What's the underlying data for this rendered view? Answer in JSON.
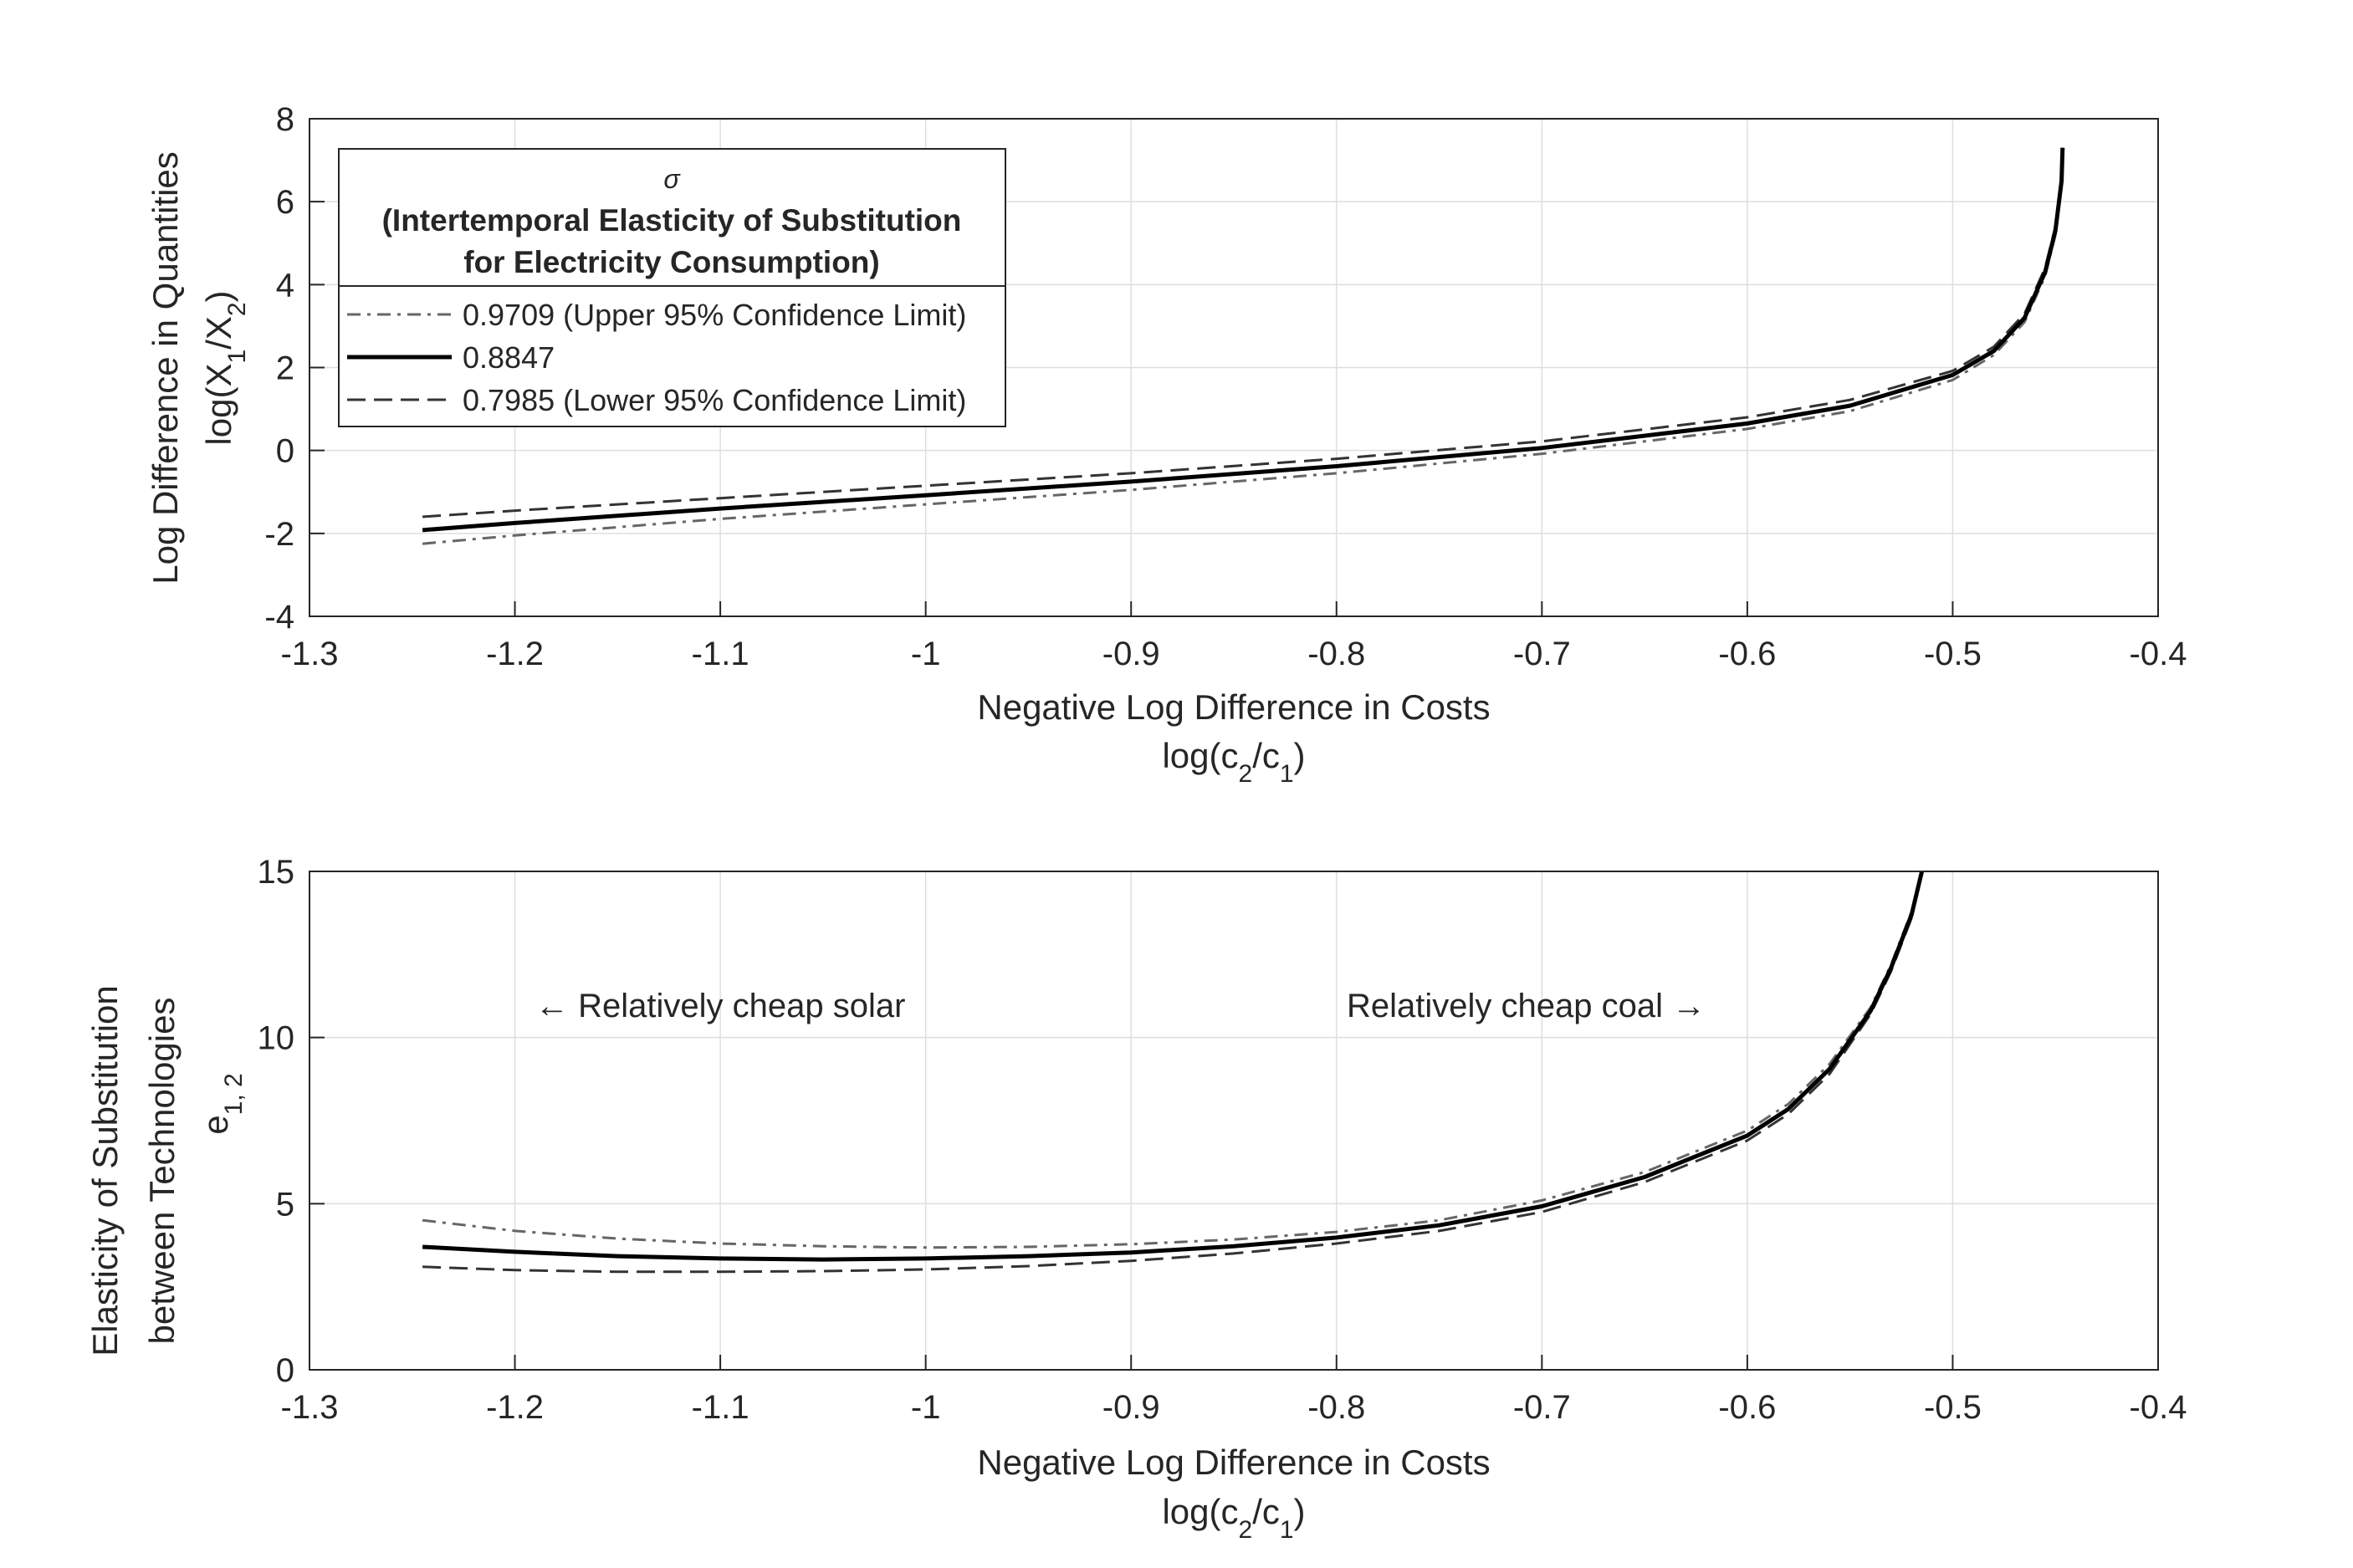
{
  "chart_data": [
    {
      "type": "line",
      "xlim": [
        -1.3,
        -0.4
      ],
      "ylim": [
        -4,
        8
      ],
      "xticks": [
        "-1.3",
        "-1.2",
        "-1.1",
        "-1",
        "-0.9",
        "-0.8",
        "-0.7",
        "-0.6",
        "-0.5",
        "-0.4"
      ],
      "yticks": [
        "-4",
        "-2",
        "0",
        "2",
        "4",
        "6",
        "8"
      ],
      "xlabel": [
        "Negative Log Difference in Costs",
        "log(c2/c1)"
      ],
      "ylabel": [
        "Log Difference in Quantities",
        "log(X1/X2)"
      ],
      "grid": true,
      "legend": {
        "placement": "top-left",
        "title_symbol": "σ",
        "title_lines": [
          "(Intertemporal Elasticity of Substitution",
          "for Electricity Consumption)"
        ],
        "entries": [
          "0.9709 (Upper 95% Confidence Limit)",
          "0.8847",
          "0.7985 (Lower 95% Confidence Limit)"
        ]
      },
      "series": [
        {
          "name": "0.9709 (Upper 95% Confidence Limit)",
          "style": "dash-dot",
          "color": "#666666",
          "x": [
            -1.245,
            -1.2,
            -1.1,
            -1.0,
            -0.9,
            -0.8,
            -0.7,
            -0.6,
            -0.55,
            -0.5,
            -0.48,
            -0.465,
            -0.455,
            -0.45,
            -0.447,
            -0.4465
          ],
          "y": [
            -2.25,
            -2.05,
            -1.65,
            -1.3,
            -0.95,
            -0.55,
            -0.08,
            0.52,
            0.95,
            1.7,
            2.3,
            3.1,
            4.2,
            5.2,
            6.4,
            7.2
          ]
        },
        {
          "name": "0.8847",
          "style": "solid",
          "color": "#000000",
          "x": [
            -1.245,
            -1.2,
            -1.1,
            -1.0,
            -0.9,
            -0.8,
            -0.7,
            -0.6,
            -0.55,
            -0.5,
            -0.48,
            -0.465,
            -0.455,
            -0.45,
            -0.447,
            -0.4465
          ],
          "y": [
            -1.92,
            -1.75,
            -1.4,
            -1.08,
            -0.75,
            -0.38,
            0.06,
            0.65,
            1.08,
            1.82,
            2.4,
            3.2,
            4.3,
            5.3,
            6.5,
            7.3
          ]
        },
        {
          "name": "0.7985 (Lower 95% Confidence Limit)",
          "style": "dashed",
          "color": "#333333",
          "x": [
            -1.245,
            -1.2,
            -1.1,
            -1.0,
            -0.9,
            -0.8,
            -0.7,
            -0.6,
            -0.55,
            -0.5,
            -0.48,
            -0.465,
            -0.455,
            -0.45,
            -0.447,
            -0.4465
          ],
          "y": [
            -1.6,
            -1.45,
            -1.15,
            -0.85,
            -0.55,
            -0.2,
            0.22,
            0.8,
            1.22,
            1.92,
            2.5,
            3.3,
            4.4,
            5.4,
            6.55,
            7.3
          ]
        }
      ]
    },
    {
      "type": "line",
      "xlim": [
        -1.3,
        -0.4
      ],
      "ylim": [
        0,
        15
      ],
      "xticks": [
        "-1.3",
        "-1.2",
        "-1.1",
        "-1",
        "-0.9",
        "-0.8",
        "-0.7",
        "-0.6",
        "-0.5",
        "-0.4"
      ],
      "yticks": [
        "0",
        "5",
        "10",
        "15"
      ],
      "xlabel": [
        "Negative Log Difference in Costs",
        "log(c2/c1)"
      ],
      "ylabel": [
        "Elasticity of Substitution",
        "between Technologies",
        "e1, 2"
      ],
      "grid": true,
      "annotations": [
        "← Relatively cheap solar",
        "Relatively cheap coal →"
      ],
      "series": [
        {
          "name": "0.9709 (Upper 95% Confidence Limit)",
          "style": "dash-dot",
          "color": "#666666",
          "x": [
            -1.245,
            -1.2,
            -1.15,
            -1.1,
            -1.05,
            -1.0,
            -0.95,
            -0.9,
            -0.85,
            -0.8,
            -0.75,
            -0.7,
            -0.65,
            -0.6,
            -0.58,
            -0.56,
            -0.54,
            -0.53,
            -0.52,
            -0.515
          ],
          "y": [
            4.5,
            4.18,
            3.95,
            3.8,
            3.72,
            3.68,
            3.7,
            3.78,
            3.92,
            4.15,
            4.5,
            5.1,
            5.95,
            7.2,
            8.0,
            9.2,
            10.9,
            12.2,
            13.8,
            15.0
          ]
        },
        {
          "name": "0.8847",
          "style": "solid",
          "color": "#000000",
          "x": [
            -1.245,
            -1.2,
            -1.15,
            -1.1,
            -1.05,
            -1.0,
            -0.95,
            -0.9,
            -0.85,
            -0.8,
            -0.75,
            -0.7,
            -0.65,
            -0.6,
            -0.58,
            -0.56,
            -0.54,
            -0.53,
            -0.52,
            -0.515
          ],
          "y": [
            3.7,
            3.55,
            3.42,
            3.35,
            3.32,
            3.35,
            3.42,
            3.53,
            3.72,
            3.98,
            4.35,
            4.92,
            5.8,
            7.05,
            7.85,
            9.05,
            10.8,
            12.1,
            13.7,
            15.0
          ]
        },
        {
          "name": "0.7985 (Lower 95% Confidence Limit)",
          "style": "dashed",
          "color": "#333333",
          "x": [
            -1.245,
            -1.2,
            -1.15,
            -1.1,
            -1.05,
            -1.0,
            -0.95,
            -0.9,
            -0.85,
            -0.8,
            -0.75,
            -0.7,
            -0.65,
            -0.6,
            -0.58,
            -0.56,
            -0.54,
            -0.53,
            -0.52,
            -0.515
          ],
          "y": [
            3.1,
            3.0,
            2.95,
            2.95,
            2.97,
            3.02,
            3.12,
            3.28,
            3.5,
            3.8,
            4.18,
            4.75,
            5.65,
            6.9,
            7.7,
            8.9,
            10.7,
            12.0,
            13.6,
            15.0
          ]
        }
      ]
    }
  ]
}
